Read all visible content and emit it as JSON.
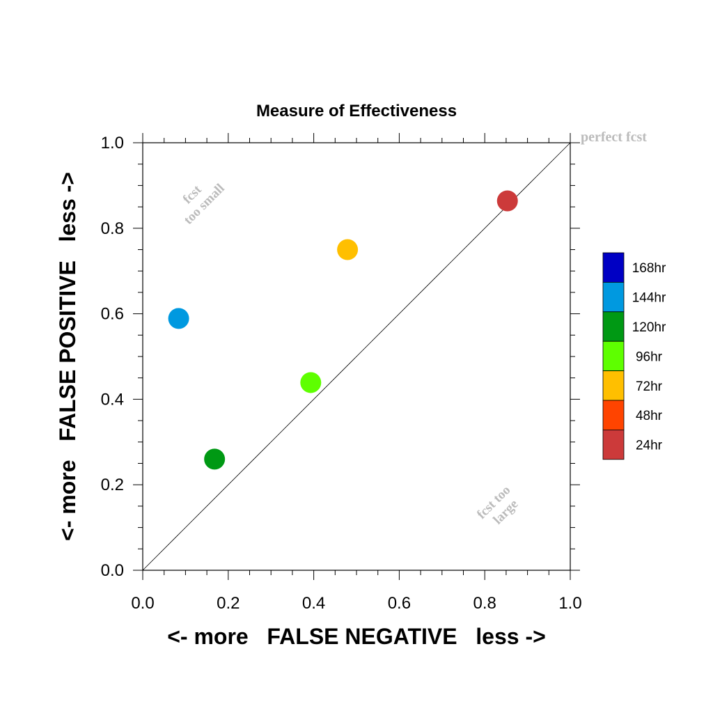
{
  "chart_data": {
    "type": "scatter",
    "title": "Measure of Effectiveness",
    "xlabel": "<- more   FALSE NEGATIVE   less ->",
    "ylabel": "<- more   FALSE POSITIVE   less ->",
    "xlim": [
      0,
      1
    ],
    "ylim": [
      0,
      1
    ],
    "xticks": [
      "0.0",
      "0.2",
      "0.4",
      "0.6",
      "0.8",
      "1.0"
    ],
    "yticks": [
      "0.0",
      "0.2",
      "0.4",
      "0.6",
      "0.8",
      "1.0"
    ],
    "grid": false,
    "diagonal_line": true,
    "annotations": {
      "top_left": [
        "fcst",
        "too small"
      ],
      "bottom_right": [
        "fcst too",
        "large"
      ],
      "top_right": "perfect fcst"
    },
    "annotation_color": "#bbbbbb",
    "points": [
      {
        "x": 0.853,
        "y": 0.864,
        "color": "#cc3a3a"
      },
      {
        "x": 0.479,
        "y": 0.75,
        "color": "#ffbf00"
      },
      {
        "x": 0.393,
        "y": 0.439,
        "color": "#5eff00"
      },
      {
        "x": 0.168,
        "y": 0.26,
        "color": "#009914"
      },
      {
        "x": 0.084,
        "y": 0.589,
        "color": "#0099e0"
      }
    ],
    "legend": {
      "position": "right",
      "entries": [
        {
          "label": "168hr",
          "color": "#0000c4"
        },
        {
          "label": "144hr",
          "color": "#0099e0"
        },
        {
          "label": "120hr",
          "color": "#009914"
        },
        {
          "label": "96hr",
          "color": "#5eff00"
        },
        {
          "label": "72hr",
          "color": "#ffbf00"
        },
        {
          "label": "48hr",
          "color": "#ff4400"
        },
        {
          "label": "24hr",
          "color": "#cc3a3a"
        }
      ]
    }
  }
}
